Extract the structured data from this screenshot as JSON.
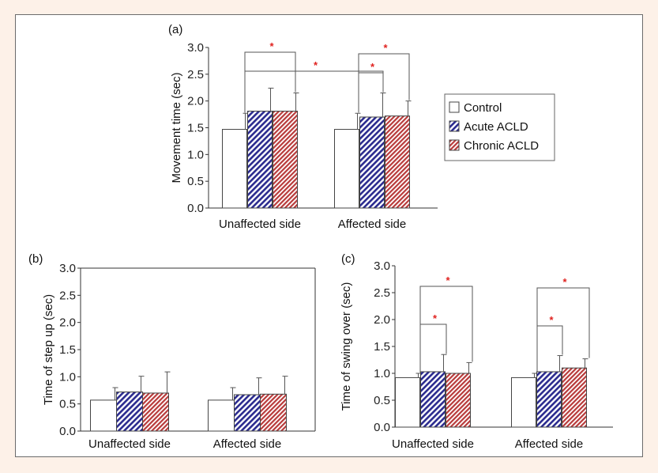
{
  "legend": {
    "items": [
      {
        "label": "Control",
        "style": "white"
      },
      {
        "label": "Acute ACLD",
        "style": "blue-hatch"
      },
      {
        "label": "Chronic ACLD",
        "style": "red-hatch"
      }
    ]
  },
  "colors": {
    "control_fill": "#ffffff",
    "acute": "#2b2b8f",
    "chronic": "#b83a3a",
    "sig_star": "#e0221f",
    "page_bg": "#fdf1e8"
  },
  "chart_data": [
    {
      "panel_label": "(a)",
      "type": "bar",
      "ylabel": "Movement time (sec)",
      "ylim": [
        0,
        3.0
      ],
      "yticks": [
        "0.0",
        "0.5",
        "1.0",
        "1.5",
        "2.0",
        "2.5",
        "3.0"
      ],
      "categories": [
        "Unaffected side",
        "Affected side"
      ],
      "series": [
        {
          "name": "Control",
          "values": [
            1.47,
            1.47
          ],
          "errors": [
            0.3,
            0.3
          ]
        },
        {
          "name": "Acute ACLD",
          "values": [
            1.81,
            1.7
          ],
          "errors": [
            0.43,
            0.45
          ]
        },
        {
          "name": "Chronic ACLD",
          "values": [
            1.81,
            1.72
          ],
          "errors": [
            0.34,
            0.28
          ]
        }
      ],
      "significance": [
        {
          "category": 0,
          "pair": [
            0,
            1
          ],
          "label": "*"
        },
        {
          "category": 0,
          "pair": [
            0,
            2
          ],
          "label": "*"
        },
        {
          "category": 1,
          "pair": [
            0,
            1
          ],
          "label": "*"
        },
        {
          "category": 1,
          "pair": [
            0,
            2
          ],
          "label": "*"
        }
      ]
    },
    {
      "panel_label": "(b)",
      "type": "bar",
      "ylabel": "Time of step up (sec)",
      "ylim": [
        0,
        3.0
      ],
      "yticks": [
        "0.0",
        "0.5",
        "1.0",
        "1.5",
        "2.0",
        "2.5",
        "3.0"
      ],
      "categories": [
        "Unaffected side",
        "Affected side"
      ],
      "series": [
        {
          "name": "Control",
          "values": [
            0.57,
            0.57
          ],
          "errors": [
            0.23,
            0.23
          ]
        },
        {
          "name": "Acute ACLD",
          "values": [
            0.72,
            0.67
          ],
          "errors": [
            0.29,
            0.31
          ]
        },
        {
          "name": "Chronic ACLD",
          "values": [
            0.7,
            0.68
          ],
          "errors": [
            0.39,
            0.33
          ]
        }
      ],
      "significance": []
    },
    {
      "panel_label": "(c)",
      "type": "bar",
      "ylabel": "Time of swing over (sec)",
      "ylim": [
        0,
        3.0
      ],
      "yticks": [
        "0.0",
        "0.5",
        "1.0",
        "1.5",
        "2.0",
        "2.5",
        "3.0"
      ],
      "categories": [
        "Unaffected side",
        "Affected side"
      ],
      "series": [
        {
          "name": "Control",
          "values": [
            0.92,
            0.92
          ],
          "errors": [
            0.08,
            0.08
          ]
        },
        {
          "name": "Acute ACLD",
          "values": [
            1.03,
            1.03
          ],
          "errors": [
            0.32,
            0.3
          ]
        },
        {
          "name": "Chronic ACLD",
          "values": [
            1.0,
            1.1
          ],
          "errors": [
            0.2,
            0.17
          ]
        }
      ],
      "significance": [
        {
          "category": 0,
          "pair": [
            0,
            1
          ],
          "label": "*"
        },
        {
          "category": 0,
          "pair": [
            0,
            2
          ],
          "label": "*"
        },
        {
          "category": 1,
          "pair": [
            0,
            1
          ],
          "label": "*"
        },
        {
          "category": 1,
          "pair": [
            0,
            2
          ],
          "label": "*"
        }
      ]
    }
  ]
}
